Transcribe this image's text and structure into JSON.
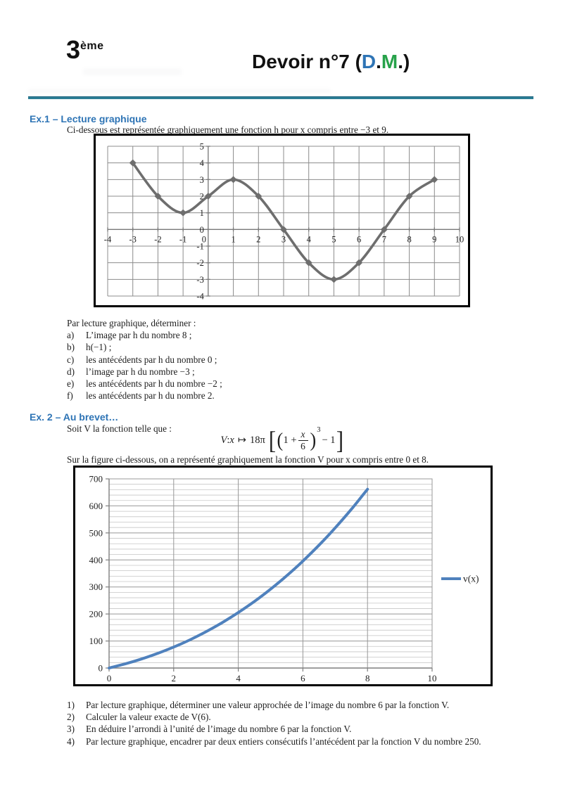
{
  "page": {
    "grade": "3",
    "grade_sup": "ème",
    "title_prefix": "Devoir n°7 (",
    "title_d": "D",
    "title_dot1": ".",
    "title_m": "M",
    "title_dot2": ".",
    "title_close": ")",
    "accent_blue": "#2e74b5",
    "accent_green": "#27a24a",
    "rule_color": "#2c7e95"
  },
  "ex1": {
    "heading": "Ex.1 – Lecture graphique",
    "intro": "Ci-dessous est représentée graphiquement une fonction h pour x compris entre −3 et 9.",
    "questions_intro": "Par lecture graphique, déterminer :",
    "questions": [
      {
        "label": "a)",
        "text": "L’image par h du nombre 8 ;"
      },
      {
        "label": "b)",
        "text": "h(−1) ;"
      },
      {
        "label": "c)",
        "text": "les antécédents par h du nombre 0 ;"
      },
      {
        "label": "d)",
        "text": "l’image par h du nombre −3 ;"
      },
      {
        "label": "e)",
        "text": "les antécédents par h du nombre −2 ;"
      },
      {
        "label": "f)",
        "text": "les antécédents par h du nombre 2."
      }
    ]
  },
  "ex2": {
    "heading": "Ex. 2 – Au brevet…",
    "intro": "Soit V la fonction telle que :",
    "formula": {
      "lhs": "V",
      "colon": ": ",
      "var": "x",
      "maps_to": "↦",
      "coeff": "18π",
      "bracket_open": "[",
      "paren_open": "(",
      "term": "1 +",
      "num": "x",
      "den": "6",
      "paren_close": ")",
      "exponent": "3",
      "tail": "− 1",
      "bracket_close": "]"
    },
    "caption": "Sur la figure ci-dessous, on a représenté graphiquement la fonction V pour x compris entre 0 et 8.",
    "questions": [
      {
        "label": "1)",
        "text": "Par lecture graphique, déterminer une valeur approchée de l’image du nombre 6 par la fonction V."
      },
      {
        "label": "2)",
        "text": "Calculer la valeur exacte de V(6)."
      },
      {
        "label": "3)",
        "text": "En déduire l’arrondi à l’unité de l’image du nombre 6 par la fonction V."
      },
      {
        "label": "4)",
        "text": "Par lecture graphique, encadrer par deux entiers consécutifs l’antécédent par la fonction V du nombre 250."
      }
    ]
  },
  "chart_data": [
    {
      "type": "line",
      "title": "",
      "xlabel": "",
      "ylabel": "",
      "series": [
        {
          "name": "h",
          "x": [
            -3,
            -2,
            -1,
            0,
            1,
            2,
            3,
            4,
            5,
            6,
            7,
            8,
            9
          ],
          "values": [
            4,
            2,
            1,
            2,
            3,
            2,
            0,
            -2,
            -3,
            -2,
            0,
            2,
            3
          ]
        }
      ],
      "xlim": [
        -4,
        10
      ],
      "ylim": [
        -4,
        5
      ],
      "xticks": [
        -4,
        -3,
        -2,
        -1,
        0,
        1,
        2,
        3,
        4,
        5,
        6,
        7,
        8,
        9,
        10
      ],
      "yticks": [
        5,
        4,
        3,
        2,
        1,
        0,
        -1,
        -2,
        -3,
        -4
      ],
      "grid": "both, step 1",
      "smooth": true,
      "marker": "diamond",
      "line_color": "#6e6e6e",
      "grid_color": "#8c8c8c",
      "axis_color": "#7a7a7a",
      "legend": "none"
    },
    {
      "type": "line",
      "title": "",
      "xlabel": "",
      "ylabel": "",
      "series": [
        {
          "name": "v(x)",
          "x": [
            0,
            0.5,
            1,
            1.5,
            2,
            2.5,
            3,
            3.5,
            4,
            4.5,
            5,
            5.5,
            6,
            6.5,
            7,
            7.5,
            8
          ],
          "values": [
            0,
            15.3,
            33.2,
            53.9,
            77.5,
            104.2,
            134.3,
            167.9,
            205.2,
            246.5,
            291.9,
            341.6,
            395.8,
            454.8,
            518.6,
            587.5,
            661.8
          ]
        }
      ],
      "xlim": [
        0,
        10
      ],
      "ylim": [
        0,
        700
      ],
      "xticks": [
        0,
        2,
        4,
        6,
        8,
        10
      ],
      "yticks": [
        0,
        100,
        200,
        300,
        400,
        500,
        600,
        700
      ],
      "minor_y_step": 20,
      "grid": "major x step 2, major y step 100, minor y step 20",
      "smooth": true,
      "marker": "none",
      "line_color": "#4f81bd",
      "grid_color": "#989898",
      "minor_grid_color": "#c6c6c6",
      "axis_color": "#7f7f7f",
      "legend": "right",
      "legend_label": "v(x)"
    }
  ]
}
